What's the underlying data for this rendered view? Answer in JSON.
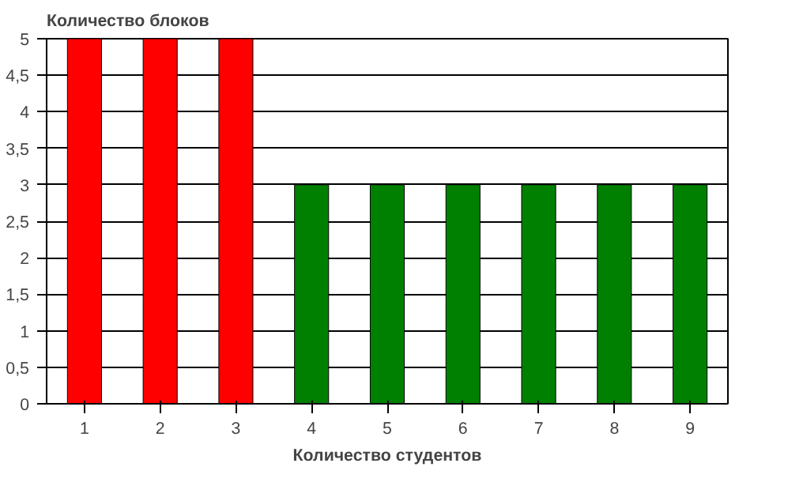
{
  "chart_data": {
    "type": "bar",
    "ylabel": "Количество блоков",
    "xlabel": "Количество студентов",
    "categories": [
      "1",
      "2",
      "3",
      "4",
      "5",
      "6",
      "7",
      "8",
      "9"
    ],
    "values": [
      5,
      5,
      5,
      3,
      3,
      3,
      3,
      3,
      3
    ],
    "colors": [
      "#ff0000",
      "#ff0000",
      "#ff0000",
      "#008000",
      "#008000",
      "#008000",
      "#008000",
      "#008000",
      "#008000"
    ],
    "ylim": [
      0,
      5
    ],
    "yticks": [
      0,
      {
        "value": 0.5,
        "label": "0,5"
      },
      1,
      {
        "value": 1.5,
        "label": "1,5"
      },
      2,
      {
        "value": 2.5,
        "label": "2,5"
      },
      3,
      {
        "value": 3.5,
        "label": "3,5"
      },
      4,
      {
        "value": 4.5,
        "label": "4,5"
      },
      5
    ],
    "grid": "y"
  }
}
